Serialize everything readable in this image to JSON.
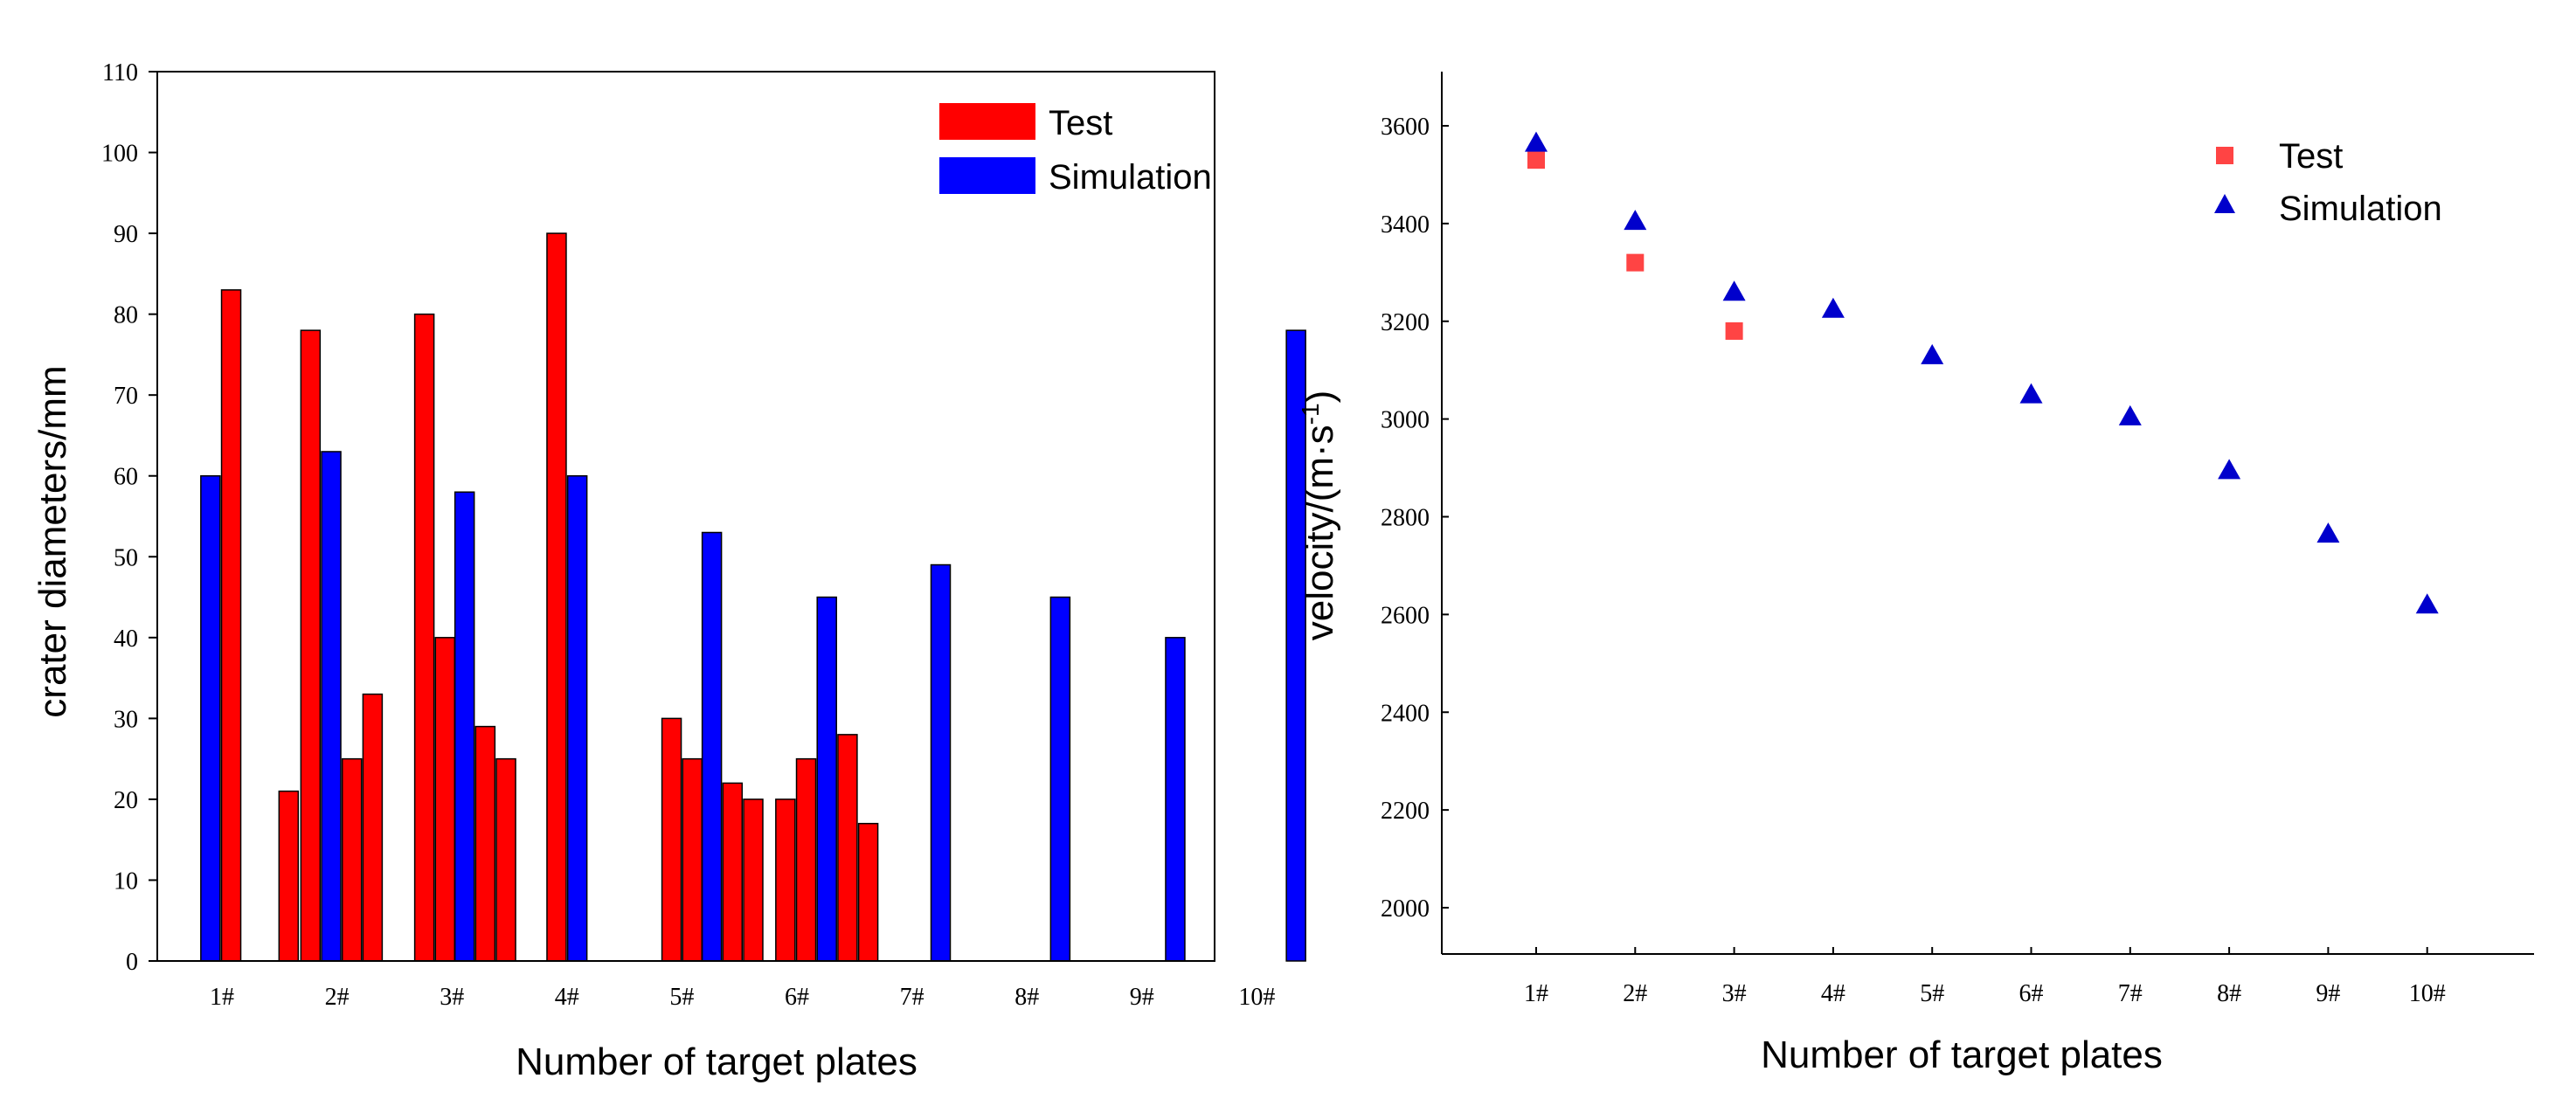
{
  "chart_data": [
    {
      "type": "bar",
      "title": "",
      "xlabel": "Number of target plates",
      "ylabel": "crater diameters/mm",
      "ylim": [
        0,
        110
      ],
      "yticks": [
        "0",
        "10",
        "20",
        "30",
        "40",
        "50",
        "60",
        "70",
        "80",
        "90",
        "100",
        "110"
      ],
      "categories": [
        "1#",
        "2#",
        "3#",
        "4#",
        "5#",
        "6#",
        "7#",
        "8#",
        "9#",
        "10#"
      ],
      "legend": {
        "position": "top-right",
        "entries": [
          "Test",
          "Simulation"
        ]
      },
      "colors": {
        "Test": "#ff0000",
        "Simulation": "#0000ff"
      },
      "bars": [
        {
          "series": "Simulation",
          "x": 0.9,
          "value": 60
        },
        {
          "series": "Test",
          "x": 1.08,
          "value": 83
        },
        {
          "series": "Test",
          "x": 1.58,
          "value": 21
        },
        {
          "series": "Test",
          "x": 1.77,
          "value": 78
        },
        {
          "series": "Simulation",
          "x": 1.95,
          "value": 63
        },
        {
          "series": "Test",
          "x": 2.13,
          "value": 25
        },
        {
          "series": "Test",
          "x": 2.31,
          "value": 33
        },
        {
          "series": "Test",
          "x": 2.76,
          "value": 80
        },
        {
          "series": "Test",
          "x": 2.94,
          "value": 40
        },
        {
          "series": "Simulation",
          "x": 3.11,
          "value": 58
        },
        {
          "series": "Test",
          "x": 3.29,
          "value": 29
        },
        {
          "series": "Test",
          "x": 3.47,
          "value": 25
        },
        {
          "series": "Test",
          "x": 3.91,
          "value": 90
        },
        {
          "series": "Simulation",
          "x": 4.09,
          "value": 60
        },
        {
          "series": "Test",
          "x": 4.91,
          "value": 30
        },
        {
          "series": "Test",
          "x": 5.09,
          "value": 25
        },
        {
          "series": "Simulation",
          "x": 5.26,
          "value": 53
        },
        {
          "series": "Test",
          "x": 5.44,
          "value": 22
        },
        {
          "series": "Test",
          "x": 5.62,
          "value": 20
        },
        {
          "series": "Test",
          "x": 5.9,
          "value": 20
        },
        {
          "series": "Test",
          "x": 6.08,
          "value": 25
        },
        {
          "series": "Simulation",
          "x": 6.26,
          "value": 45
        },
        {
          "series": "Test",
          "x": 6.44,
          "value": 28
        },
        {
          "series": "Test",
          "x": 6.62,
          "value": 17
        },
        {
          "series": "Simulation",
          "x": 7.25,
          "value": 49
        },
        {
          "series": "Simulation",
          "x": 8.29,
          "value": 45
        },
        {
          "series": "Simulation",
          "x": 9.29,
          "value": 40
        },
        {
          "series": "Simulation",
          "x": 10.34,
          "value": 78
        }
      ]
    },
    {
      "type": "scatter",
      "title": "",
      "xlabel": "Number of target plates",
      "ylabel": "velocity/(m·s",
      "ylabel_sup": "-1",
      "ylabel_end": ")",
      "ylim": [
        1900,
        3700
      ],
      "yticks": [
        "2000",
        "2200",
        "2400",
        "2600",
        "2800",
        "3000",
        "3200",
        "3400",
        "3600"
      ],
      "categories": [
        "1#",
        "2#",
        "3#",
        "4#",
        "5#",
        "6#",
        "7#",
        "8#",
        "9#",
        "10#"
      ],
      "legend": {
        "position": "top-right",
        "entries": [
          "Test",
          "Simulation"
        ]
      },
      "colors": {
        "Test": "#ff4444",
        "Simulation": "#0000cc"
      },
      "series": [
        {
          "name": "Test",
          "marker": "square",
          "values": [
            3530,
            3320,
            3180,
            null,
            null,
            null,
            null,
            null,
            null,
            null
          ]
        },
        {
          "name": "Simulation",
          "marker": "triangle",
          "values": [
            3565,
            3405,
            3260,
            3225,
            3130,
            3050,
            3005,
            2895,
            2765,
            2620
          ]
        }
      ]
    }
  ]
}
